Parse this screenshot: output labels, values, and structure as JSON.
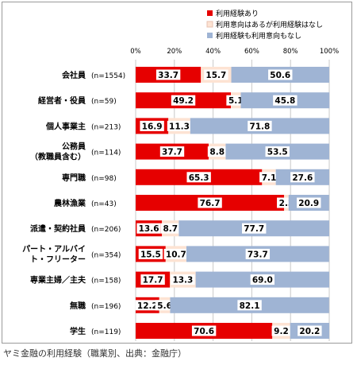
{
  "caption": "ヤミ金融の利用経験（職業別、出典：金融庁）",
  "chart_data": {
    "type": "bar",
    "stacked": true,
    "orientation": "horizontal",
    "x_ticks": [
      "0%",
      "20%",
      "40%",
      "60%",
      "80%",
      "100%"
    ],
    "xlim": [
      0,
      100
    ],
    "legend_position": "top-right",
    "categories": [
      {
        "name": "会社員",
        "n": "(n=1554)"
      },
      {
        "name": "経営者・役員",
        "n": "(n=59)"
      },
      {
        "name": "個人事業主",
        "n": "(n=213)"
      },
      {
        "name": "公務員\n（教職員含む）",
        "n": "(n=114)"
      },
      {
        "name": "専門職",
        "n": "(n=98)"
      },
      {
        "name": "農林漁業",
        "n": "(n=43)"
      },
      {
        "name": "派遣・契約社員",
        "n": "(n=206)"
      },
      {
        "name": "パート・アルバイ\nト・フリーター",
        "n": "(n=354)"
      },
      {
        "name": "専業主婦／主夫",
        "n": "(n=158)"
      },
      {
        "name": "無職",
        "n": "(n=196)"
      },
      {
        "name": "学生",
        "n": "(n=119)"
      }
    ],
    "series": [
      {
        "name": "利用経験あり",
        "color": "#e60000",
        "values": [
          33.7,
          49.2,
          16.9,
          37.7,
          65.3,
          76.7,
          13.6,
          15.5,
          17.7,
          12.2,
          70.6
        ]
      },
      {
        "name": "利用意向はあるが利用経験はなし",
        "color": "#fde3d3",
        "values": [
          15.7,
          5.1,
          11.3,
          8.8,
          7.1,
          2.3,
          8.7,
          10.7,
          13.3,
          5.6,
          9.2
        ]
      },
      {
        "name": "利用経験も利用意向もなし",
        "color": "#9fb4d4",
        "values": [
          50.6,
          45.8,
          71.8,
          53.5,
          27.6,
          20.9,
          77.7,
          73.7,
          69.0,
          82.1,
          20.2
        ]
      }
    ]
  }
}
